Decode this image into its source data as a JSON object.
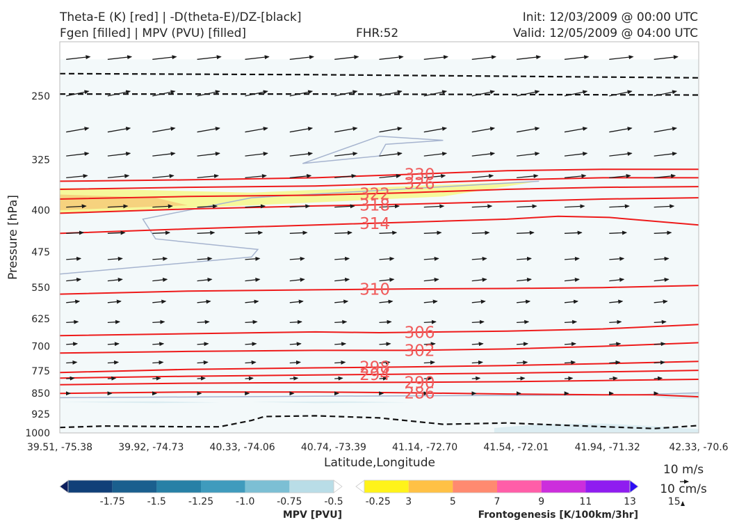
{
  "header": {
    "title_left_1": "Theta-E (K) [red] | -D(theta-E)/DZ-[black]",
    "title_left_2": "Fgen [filled] | MPV (PVU) [filled]",
    "fhr": "FHR:52",
    "init": "Init: 12/03/2009 @ 00:00 UTC",
    "valid": "Valid: 12/05/2009 @ 04:00 UTC"
  },
  "chart_data": {
    "type": "cross-section",
    "xlabel": "Latitude,Longitude",
    "ylabel": "Pressure [hPa]",
    "x_ticks": [
      "39.51, -75.38",
      "39.92, -74.73",
      "40.33, -74.06",
      "40.74, -73.39",
      "41.14, -72.70",
      "41.54, -72.01",
      "41.94, -71.32",
      "42.33, -70.6"
    ],
    "y_ticks": [
      250,
      325,
      400,
      475,
      550,
      625,
      700,
      775,
      850,
      925,
      1000
    ],
    "ylim": [
      1000,
      200
    ],
    "y_scale": "log",
    "theta_e_contours": [
      {
        "label": "330",
        "points": [
          [
            0,
            355
          ],
          [
            0.2,
            353
          ],
          [
            0.4,
            350
          ],
          [
            0.55,
            345
          ],
          [
            0.7,
            340
          ],
          [
            0.85,
            338
          ],
          [
            1,
            338
          ]
        ]
      },
      {
        "label": "326",
        "points": [
          [
            0,
            367
          ],
          [
            0.2,
            364
          ],
          [
            0.4,
            362
          ],
          [
            0.55,
            358
          ],
          [
            0.7,
            353
          ],
          [
            0.85,
            350
          ],
          [
            1,
            350
          ]
        ]
      },
      {
        "label": "322",
        "points": [
          [
            0,
            382
          ],
          [
            0.2,
            378
          ],
          [
            0.4,
            376
          ],
          [
            0.55,
            372
          ],
          [
            0.7,
            367
          ],
          [
            0.85,
            364
          ],
          [
            1,
            363
          ]
        ]
      },
      {
        "label": "318",
        "points": [
          [
            0,
            405
          ],
          [
            0.2,
            398
          ],
          [
            0.4,
            393
          ],
          [
            0.55,
            390
          ],
          [
            0.7,
            386
          ],
          [
            0.85,
            382
          ],
          [
            1,
            380
          ]
        ]
      },
      {
        "label": "314",
        "points": [
          [
            0,
            440
          ],
          [
            0.2,
            432
          ],
          [
            0.4,
            425
          ],
          [
            0.55,
            420
          ],
          [
            0.7,
            415
          ],
          [
            0.78,
            410
          ],
          [
            0.86,
            412
          ],
          [
            1,
            425
          ]
        ]
      },
      {
        "label": "310",
        "points": [
          [
            0,
            565
          ],
          [
            0.2,
            558
          ],
          [
            0.4,
            555
          ],
          [
            0.55,
            553
          ],
          [
            0.7,
            552
          ],
          [
            0.85,
            550
          ],
          [
            1,
            545
          ]
        ]
      },
      {
        "label": "306",
        "points": [
          [
            0,
            670
          ],
          [
            0.2,
            665
          ],
          [
            0.4,
            660
          ],
          [
            0.5,
            662
          ],
          [
            0.7,
            658
          ],
          [
            0.85,
            652
          ],
          [
            1,
            640
          ]
        ]
      },
      {
        "label": "302",
        "points": [
          [
            0,
            720
          ],
          [
            0.2,
            715
          ],
          [
            0.4,
            712
          ],
          [
            0.55,
            712
          ],
          [
            0.7,
            708
          ],
          [
            0.85,
            700
          ],
          [
            1,
            690
          ]
        ]
      },
      {
        "label": "298",
        "points": [
          [
            0,
            780
          ],
          [
            0.2,
            770
          ],
          [
            0.4,
            765
          ],
          [
            0.55,
            762
          ],
          [
            0.7,
            758
          ],
          [
            0.85,
            752
          ],
          [
            1,
            745
          ]
        ]
      },
      {
        "label": "294",
        "points": [
          [
            0,
            798
          ],
          [
            0.2,
            792
          ],
          [
            0.4,
            788
          ],
          [
            0.55,
            785
          ],
          [
            0.7,
            782
          ],
          [
            0.85,
            778
          ],
          [
            1,
            773
          ]
        ]
      },
      {
        "label": "290",
        "points": [
          [
            0,
            820
          ],
          [
            0.2,
            815
          ],
          [
            0.4,
            813
          ],
          [
            0.55,
            812
          ],
          [
            0.7,
            810
          ],
          [
            0.85,
            806
          ],
          [
            1,
            802
          ]
        ]
      },
      {
        "label": "286",
        "points": [
          [
            0,
            850
          ],
          [
            0.2,
            845
          ],
          [
            0.4,
            845
          ],
          [
            0.55,
            848
          ],
          [
            0.7,
            852
          ],
          [
            0.85,
            855
          ],
          [
            0.93,
            855
          ],
          [
            1,
            862
          ]
        ]
      }
    ],
    "dtheta_dz_contours": [
      {
        "points": [
          [
            0,
            228
          ],
          [
            0.4,
            229
          ],
          [
            1,
            232
          ]
        ]
      },
      {
        "points": [
          [
            0,
            248
          ],
          [
            0.4,
            248
          ],
          [
            1,
            249
          ]
        ]
      },
      {
        "points": [
          [
            0,
            978
          ],
          [
            0.07,
            972
          ],
          [
            0.2,
            975
          ],
          [
            0.25,
            975
          ],
          [
            0.3,
            950
          ],
          [
            0.32,
            935
          ],
          [
            0.4,
            932
          ],
          [
            0.5,
            940
          ],
          [
            0.6,
            965
          ],
          [
            0.7,
            960
          ],
          [
            0.8,
            970
          ],
          [
            0.93,
            982
          ],
          [
            1,
            970
          ]
        ]
      }
    ],
    "wind_barbs": {
      "columns": [
        0.01,
        0.075,
        0.145,
        0.215,
        0.29,
        0.36,
        0.43,
        0.5,
        0.57,
        0.645,
        0.715,
        0.79,
        0.86,
        0.93
      ],
      "levels": [
        {
          "p": 215,
          "u": 0.9,
          "v": 0.1
        },
        {
          "p": 250,
          "u": 0.85,
          "v": 0.18
        },
        {
          "p": 290,
          "u": 0.85,
          "v": 0.15
        },
        {
          "p": 320,
          "u": 0.85,
          "v": 0.1
        },
        {
          "p": 350,
          "u": 0.8,
          "v": 0.08
        },
        {
          "p": 395,
          "u": 0.75,
          "v": 0.04
        },
        {
          "p": 440,
          "u": 0.65,
          "v": 0.03
        },
        {
          "p": 490,
          "u": 0.55,
          "v": 0.04
        },
        {
          "p": 535,
          "u": 0.55,
          "v": 0.06
        },
        {
          "p": 585,
          "u": 0.5,
          "v": 0.05
        },
        {
          "p": 635,
          "u": 0.45,
          "v": 0.03
        },
        {
          "p": 695,
          "u": 0.42,
          "v": 0.03
        },
        {
          "p": 750,
          "u": 0.4,
          "v": 0.03
        },
        {
          "p": 800,
          "u": 0.3,
          "v": 0.02
        },
        {
          "p": 850,
          "u": 0.15,
          "v": 0.0
        }
      ]
    },
    "mpv_colorbar": {
      "title": "MPV [PVU]",
      "ticks": [
        "-1.75",
        "-1.5",
        "-1.25",
        "-1.0",
        "-0.75",
        "-0.5",
        "-0.25"
      ],
      "colors": [
        "#0c1f5e",
        "#103f78",
        "#1a5f8e",
        "#2780a6",
        "#3f9bbd",
        "#7cbfd4",
        "#b9dde7",
        "#ffffff"
      ]
    },
    "fgen_colorbar": {
      "title": "Frontogenesis [K/100km/3hr]",
      "ticks": [
        "3",
        "5",
        "7",
        "9",
        "11",
        "13",
        "15"
      ],
      "colors": [
        "#ffffff",
        "#fff31a",
        "#ffc145",
        "#ff8a70",
        "#ff5ea8",
        "#cc2edc",
        "#8f1cf0",
        "#2d0df5"
      ]
    },
    "reference_vectors": {
      "horizontal": "10 m/s",
      "vertical": "10 cm/s"
    }
  }
}
